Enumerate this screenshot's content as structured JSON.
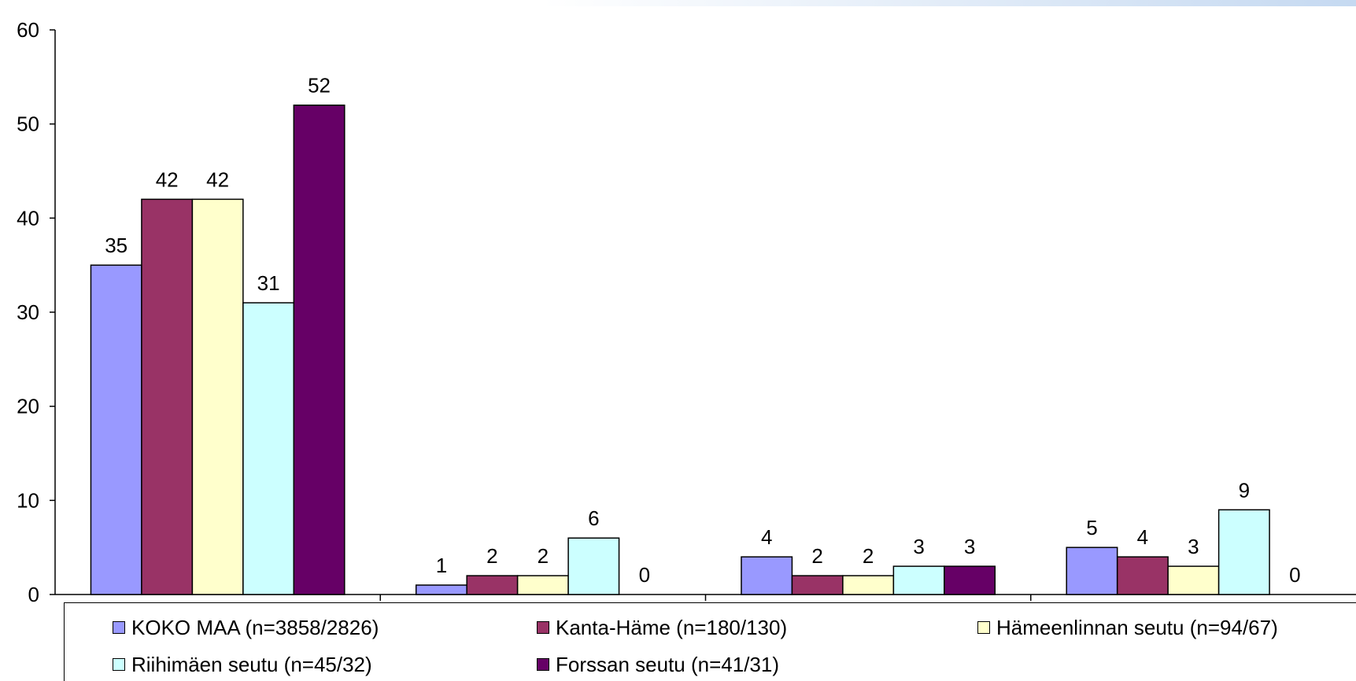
{
  "chart_data": {
    "type": "bar",
    "categories": [
      "",
      "",
      "",
      ""
    ],
    "ylim": [
      0,
      60
    ],
    "yticks": [
      0,
      10,
      20,
      30,
      40,
      50,
      60
    ],
    "grid": false,
    "legend_position": "bottom",
    "series": [
      {
        "name": "KOKO MAA (n=3858/2826)",
        "color": "#9999ff",
        "values": [
          35,
          1,
          4,
          5
        ]
      },
      {
        "name": "Kanta-Häme (n=180/130)",
        "color": "#993366",
        "values": [
          42,
          2,
          2,
          4
        ]
      },
      {
        "name": "Hämeenlinnan seutu (n=94/67)",
        "color": "#ffffcc",
        "values": [
          42,
          2,
          2,
          3
        ]
      },
      {
        "name": "Riihimäen seutu (n=45/32)",
        "color": "#ccffff",
        "values": [
          31,
          6,
          3,
          9
        ]
      },
      {
        "name": "Forssan seutu (n=41/31)",
        "color": "#660066",
        "values": [
          52,
          0,
          3,
          0
        ]
      }
    ]
  }
}
